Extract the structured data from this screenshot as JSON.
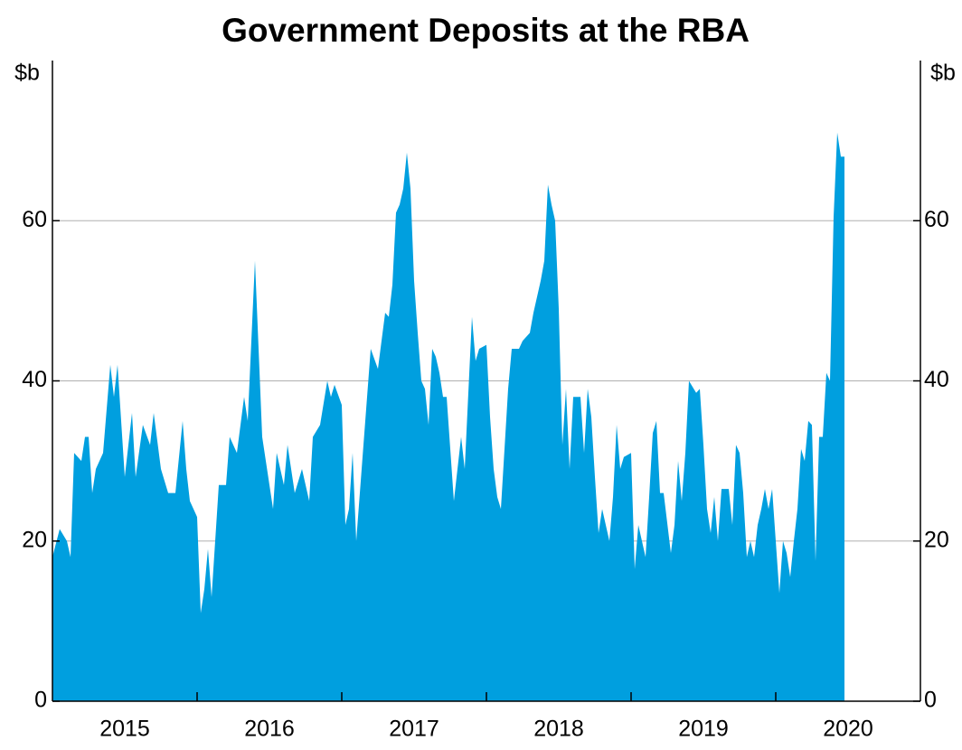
{
  "chart_data": {
    "type": "area",
    "title": "Government Deposits at the RBA",
    "ylabel": "$b",
    "color": "#009fdf",
    "grid": true,
    "xlim": [
      2015,
      2021
    ],
    "ylim": [
      0,
      80
    ],
    "yticks": [
      0,
      20,
      40,
      60
    ],
    "xticks": [
      {
        "value": 2015.5,
        "label": "2015"
      },
      {
        "value": 2016.5,
        "label": "2016"
      },
      {
        "value": 2017.5,
        "label": "2017"
      },
      {
        "value": 2018.5,
        "label": "2018"
      },
      {
        "value": 2019.5,
        "label": "2019"
      },
      {
        "value": 2020.5,
        "label": "2020"
      }
    ],
    "x": [
      2015.0,
      2015.05,
      2015.1,
      2015.125,
      2015.15,
      2015.2,
      2015.225,
      2015.25,
      2015.275,
      2015.3,
      2015.35,
      2015.4,
      2015.425,
      2015.45,
      2015.5,
      2015.55,
      2015.575,
      2015.625,
      2015.675,
      2015.7,
      2015.75,
      2015.8,
      2015.85,
      2015.9,
      2015.925,
      2015.95,
      2015.975,
      2016.0,
      2016.025,
      2016.05,
      2016.075,
      2016.1,
      2016.15,
      2016.2,
      2016.225,
      2016.275,
      2016.325,
      2016.35,
      2016.4,
      2016.45,
      2016.475,
      2016.525,
      2016.55,
      2016.6,
      2016.625,
      2016.675,
      2016.725,
      2016.775,
      2016.8,
      2016.85,
      2016.9,
      2016.925,
      2016.95,
      2017.0,
      2017.025,
      2017.05,
      2017.075,
      2017.1,
      2017.15,
      2017.175,
      2017.2,
      2017.25,
      2017.3,
      2017.325,
      2017.35,
      2017.375,
      2017.4,
      2017.425,
      2017.45,
      2017.475,
      2017.5,
      2017.525,
      2017.55,
      2017.575,
      2017.6,
      2017.625,
      2017.65,
      2017.675,
      2017.7,
      2017.725,
      2017.775,
      2017.825,
      2017.85,
      2017.9,
      2017.925,
      2017.95,
      2018.0,
      2018.025,
      2018.05,
      2018.075,
      2018.1,
      2018.15,
      2018.175,
      2018.225,
      2018.25,
      2018.3,
      2018.325,
      2018.375,
      2018.4,
      2018.425,
      2018.45,
      2018.475,
      2018.5,
      2018.525,
      2018.55,
      2018.575,
      2018.6,
      2018.65,
      2018.675,
      2018.7,
      2018.725,
      2018.75,
      2018.775,
      2018.8,
      2018.85,
      2018.875,
      2018.9,
      2018.925,
      2018.95,
      2019.0,
      2019.025,
      2019.05,
      2019.075,
      2019.1,
      2019.125,
      2019.15,
      2019.175,
      2019.2,
      2019.225,
      2019.275,
      2019.3,
      2019.325,
      2019.35,
      2019.375,
      2019.4,
      2019.45,
      2019.475,
      2019.5,
      2019.525,
      2019.55,
      2019.575,
      2019.6,
      2019.625,
      2019.675,
      2019.7,
      2019.725,
      2019.75,
      2019.775,
      2019.8,
      2019.825,
      2019.85,
      2019.875,
      2019.9,
      2019.925,
      2019.95,
      2019.975,
      2020.0,
      2020.025,
      2020.05,
      2020.075,
      2020.1,
      2020.125,
      2020.15,
      2020.175,
      2020.2,
      2020.225,
      2020.25,
      2020.275,
      2020.3,
      2020.325,
      2020.35,
      2020.375,
      2020.4,
      2020.425,
      2020.45,
      2020.475
    ],
    "values": [
      18,
      21.5,
      20,
      18,
      31,
      30,
      33,
      33,
      26,
      29,
      31,
      42,
      38,
      42,
      28,
      36,
      28,
      34.5,
      32,
      36,
      29,
      26,
      26,
      35,
      29,
      25,
      24,
      23,
      11,
      14,
      19,
      13,
      27,
      27,
      33,
      31,
      38,
      35,
      55,
      33,
      30,
      24,
      31,
      27,
      32,
      26,
      29,
      25,
      33,
      34.5,
      40,
      38,
      39.5,
      37,
      22,
      24,
      31,
      20,
      32,
      38,
      44,
      41.5,
      48.5,
      48,
      52,
      61,
      62,
      64,
      68.5,
      64,
      52.5,
      46,
      40,
      39,
      34.5,
      44,
      43,
      41,
      38,
      38,
      25,
      33,
      29,
      48,
      42.5,
      44,
      44.5,
      35.5,
      29,
      25.5,
      24,
      39,
      44,
      44,
      45,
      46,
      48.5,
      52.5,
      55,
      64.5,
      62,
      60,
      49,
      32,
      39,
      29,
      38,
      38,
      31,
      39,
      35.5,
      28,
      21,
      24,
      20,
      25.5,
      34.5,
      29,
      30.5,
      31,
      16.5,
      22,
      20,
      18,
      25.5,
      33.5,
      35,
      26,
      26,
      18.5,
      22,
      30,
      25,
      31,
      40,
      38.5,
      39,
      32,
      24,
      21,
      25.5,
      20,
      26.5,
      26.5,
      22,
      32,
      31,
      26,
      18,
      20,
      18,
      22,
      24,
      26.5,
      24,
      26.5,
      20,
      13.5,
      20,
      18.5,
      15.5,
      20,
      24,
      31.5,
      30,
      35,
      34.5,
      17.5,
      33,
      33,
      41,
      40,
      60.5,
      71,
      68,
      68
    ]
  }
}
